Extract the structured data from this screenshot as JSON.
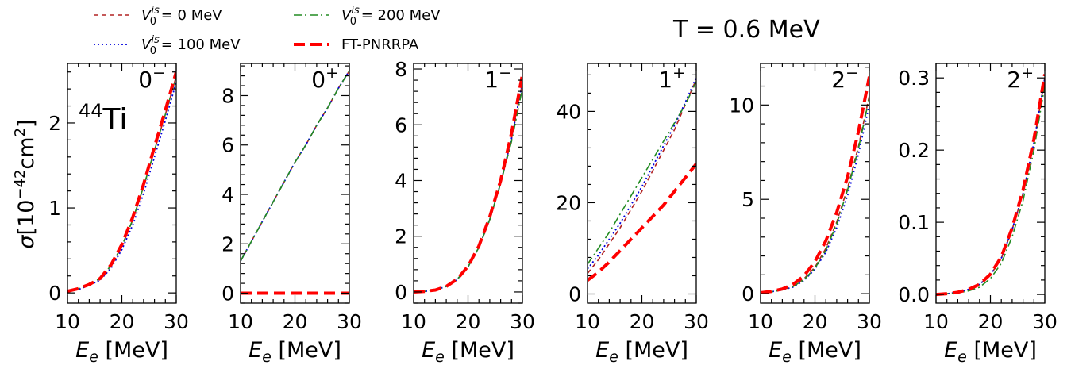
{
  "temperature_label": "T = 0.6 MeV",
  "nucleus_label": {
    "mass": "44",
    "element": "Ti"
  },
  "ylabel": {
    "sigma": "σ",
    "open": "[10",
    "exp": "−42",
    "unit": "cm",
    "unit_exp": "2",
    "close": "]"
  },
  "xlabel": {
    "main": "E",
    "sub": "e",
    "unit": " [MeV]"
  },
  "legend": [
    {
      "id": "v0",
      "prefix": "V",
      "sub": "0",
      "sup": "is",
      "text": " = 0 MeV",
      "color": "#b22222",
      "dash": "6,4",
      "width": 1.6
    },
    {
      "id": "v100",
      "prefix": "V",
      "sub": "0",
      "sup": "is",
      "text": " = 100 MeV",
      "color": "#0000dd",
      "dash": "2,3",
      "width": 1.8
    },
    {
      "id": "v200",
      "prefix": "V",
      "sub": "0",
      "sup": "is",
      "text": " = 200 MeV",
      "color": "#228b22",
      "dash": "10,4,2,4",
      "width": 1.6
    },
    {
      "id": "ft",
      "prefix": "",
      "sub": "",
      "sup": "",
      "text": "FT-PNRRPA",
      "color": "#ff0000",
      "dash": "14,7",
      "width": 4
    }
  ],
  "chart_data": [
    {
      "type": "line",
      "panel_label": "0−",
      "xlim": [
        10,
        30
      ],
      "ylim": [
        -0.12,
        2.7
      ],
      "xticks": [
        10,
        20,
        30
      ],
      "xtick_labels": [
        "10",
        "20",
        "30"
      ],
      "yticks": [
        0,
        1,
        2
      ],
      "ytick_labels": [
        "0",
        "1",
        "2"
      ],
      "x": [
        10,
        12,
        14,
        16,
        18,
        20,
        22,
        24,
        26,
        28,
        30
      ],
      "series": [
        {
          "ref": "v0",
          "values": [
            0.02,
            0.05,
            0.1,
            0.17,
            0.32,
            0.55,
            0.86,
            1.25,
            1.68,
            2.1,
            2.55
          ]
        },
        {
          "ref": "v100",
          "values": [
            0.02,
            0.04,
            0.09,
            0.15,
            0.29,
            0.51,
            0.8,
            1.17,
            1.6,
            2.03,
            2.48
          ]
        },
        {
          "ref": "v200",
          "values": [
            0.02,
            0.05,
            0.1,
            0.17,
            0.32,
            0.55,
            0.86,
            1.25,
            1.68,
            2.1,
            2.55
          ]
        },
        {
          "ref": "ft",
          "values": [
            0.02,
            0.05,
            0.1,
            0.17,
            0.33,
            0.57,
            0.89,
            1.28,
            1.72,
            2.15,
            2.6
          ]
        }
      ]
    },
    {
      "type": "line",
      "panel_label": "0+",
      "xlim": [
        10,
        30
      ],
      "ylim": [
        -0.4,
        9.3
      ],
      "xticks": [
        10,
        20,
        30
      ],
      "xtick_labels": [
        "10",
        "20",
        "30"
      ],
      "yticks": [
        0,
        2,
        4,
        6,
        8
      ],
      "ytick_labels": [
        "0",
        "2",
        "4",
        "6",
        "8"
      ],
      "x": [
        10,
        12,
        14,
        16,
        18,
        20,
        22,
        24,
        26,
        28,
        30
      ],
      "series": [
        {
          "ref": "v0",
          "values": [
            1.3,
            2.1,
            2.9,
            3.7,
            4.5,
            5.3,
            6.0,
            6.8,
            7.5,
            8.3,
            9.0
          ]
        },
        {
          "ref": "v100",
          "values": [
            1.3,
            2.1,
            2.9,
            3.7,
            4.5,
            5.3,
            6.0,
            6.8,
            7.5,
            8.3,
            9.0
          ]
        },
        {
          "ref": "v200",
          "values": [
            1.3,
            2.1,
            2.9,
            3.7,
            4.5,
            5.3,
            6.0,
            6.8,
            7.5,
            8.3,
            9.0
          ]
        },
        {
          "ref": "ft",
          "values": [
            0,
            0,
            0,
            0,
            0,
            0,
            0,
            0,
            0,
            0,
            0
          ]
        }
      ]
    },
    {
      "type": "line",
      "panel_label": "1−",
      "xlim": [
        10,
        30
      ],
      "ylim": [
        -0.4,
        8.2
      ],
      "xticks": [
        10,
        20,
        30
      ],
      "xtick_labels": [
        "10",
        "20",
        "30"
      ],
      "yticks": [
        0,
        2,
        4,
        6,
        8
      ],
      "ytick_labels": [
        "0",
        "2",
        "4",
        "6",
        "8"
      ],
      "x": [
        10,
        12,
        14,
        16,
        18,
        20,
        22,
        24,
        26,
        28,
        30
      ],
      "series": [
        {
          "ref": "v0",
          "values": [
            0,
            0.02,
            0.07,
            0.2,
            0.45,
            0.9,
            1.6,
            2.6,
            3.9,
            5.5,
            7.5
          ]
        },
        {
          "ref": "v100",
          "values": [
            0,
            0.02,
            0.07,
            0.2,
            0.45,
            0.9,
            1.6,
            2.6,
            3.9,
            5.5,
            7.5
          ]
        },
        {
          "ref": "v200",
          "values": [
            0,
            0.02,
            0.07,
            0.2,
            0.45,
            0.9,
            1.6,
            2.6,
            3.9,
            5.4,
            7.3
          ]
        },
        {
          "ref": "ft",
          "values": [
            0,
            0.02,
            0.07,
            0.2,
            0.46,
            0.92,
            1.65,
            2.7,
            4.0,
            5.7,
            7.8
          ]
        }
      ]
    },
    {
      "type": "line",
      "panel_label": "1+",
      "xlim": [
        10,
        30
      ],
      "ylim": [
        -2,
        50.5
      ],
      "xticks": [
        10,
        20,
        30
      ],
      "xtick_labels": [
        "10",
        "20",
        "30"
      ],
      "yticks": [
        0,
        20,
        40
      ],
      "ytick_labels": [
        "0",
        "20",
        "40"
      ],
      "x": [
        10,
        12,
        14,
        16,
        18,
        20,
        22,
        24,
        26,
        28,
        30
      ],
      "series": [
        {
          "ref": "v0",
          "values": [
            4.5,
            7.5,
            11,
            14.5,
            18.5,
            22.5,
            27,
            31.5,
            36,
            41.5,
            47
          ]
        },
        {
          "ref": "v100",
          "values": [
            5.5,
            8.5,
            12,
            15.5,
            19.5,
            23.5,
            28,
            32.5,
            37,
            42,
            47.5
          ]
        },
        {
          "ref": "v200",
          "values": [
            6.5,
            10,
            13.5,
            17.5,
            21.5,
            25.5,
            29.5,
            33.5,
            37.5,
            41.5,
            46.5
          ]
        },
        {
          "ref": "ft",
          "values": [
            3,
            4.8,
            7,
            9.5,
            12,
            14.5,
            17,
            19.5,
            22.5,
            25.5,
            28.5
          ]
        }
      ]
    },
    {
      "type": "line",
      "panel_label": "2−",
      "xlim": [
        10,
        30
      ],
      "ylim": [
        -0.5,
        12.2
      ],
      "xticks": [
        10,
        20,
        30
      ],
      "xtick_labels": [
        "10",
        "20",
        "30"
      ],
      "yticks": [
        0,
        5,
        10
      ],
      "ytick_labels": [
        "0",
        "5",
        "10"
      ],
      "x": [
        10,
        12,
        14,
        16,
        18,
        20,
        22,
        24,
        26,
        28,
        30
      ],
      "series": [
        {
          "ref": "v0",
          "values": [
            0.05,
            0.1,
            0.2,
            0.4,
            0.8,
            1.4,
            2.4,
            3.8,
            5.6,
            7.8,
            10.5
          ]
        },
        {
          "ref": "v100",
          "values": [
            0.05,
            0.1,
            0.2,
            0.35,
            0.7,
            1.3,
            2.2,
            3.5,
            5.2,
            7.4,
            10.0
          ]
        },
        {
          "ref": "v200",
          "values": [
            0.05,
            0.1,
            0.2,
            0.38,
            0.75,
            1.35,
            2.3,
            3.7,
            5.5,
            7.7,
            10.4
          ]
        },
        {
          "ref": "ft",
          "values": [
            0.05,
            0.12,
            0.25,
            0.5,
            0.95,
            1.7,
            2.8,
            4.3,
            6.2,
            8.6,
            11.5
          ]
        }
      ]
    },
    {
      "type": "line",
      "panel_label": "2+",
      "xlim": [
        10,
        30
      ],
      "ylim": [
        -0.012,
        0.32
      ],
      "xticks": [
        10,
        20,
        30
      ],
      "xtick_labels": [
        "10",
        "20",
        "30"
      ],
      "yticks": [
        0,
        0.1,
        0.2,
        0.3
      ],
      "ytick_labels": [
        "0.0",
        "0.1",
        "0.2",
        "0.3"
      ],
      "x": [
        10,
        12,
        14,
        16,
        18,
        20,
        22,
        24,
        26,
        28,
        30
      ],
      "series": [
        {
          "ref": "v0",
          "values": [
            0,
            0.001,
            0.003,
            0.007,
            0.014,
            0.027,
            0.05,
            0.09,
            0.14,
            0.21,
            0.3
          ]
        },
        {
          "ref": "v100",
          "values": [
            0,
            0.001,
            0.003,
            0.007,
            0.014,
            0.027,
            0.05,
            0.09,
            0.14,
            0.21,
            0.3
          ]
        },
        {
          "ref": "v200",
          "values": [
            0,
            0.001,
            0.002,
            0.005,
            0.01,
            0.022,
            0.043,
            0.08,
            0.13,
            0.2,
            0.29
          ]
        },
        {
          "ref": "ft",
          "values": [
            0,
            0.001,
            0.003,
            0.007,
            0.014,
            0.028,
            0.052,
            0.092,
            0.145,
            0.215,
            0.305
          ]
        }
      ]
    }
  ]
}
